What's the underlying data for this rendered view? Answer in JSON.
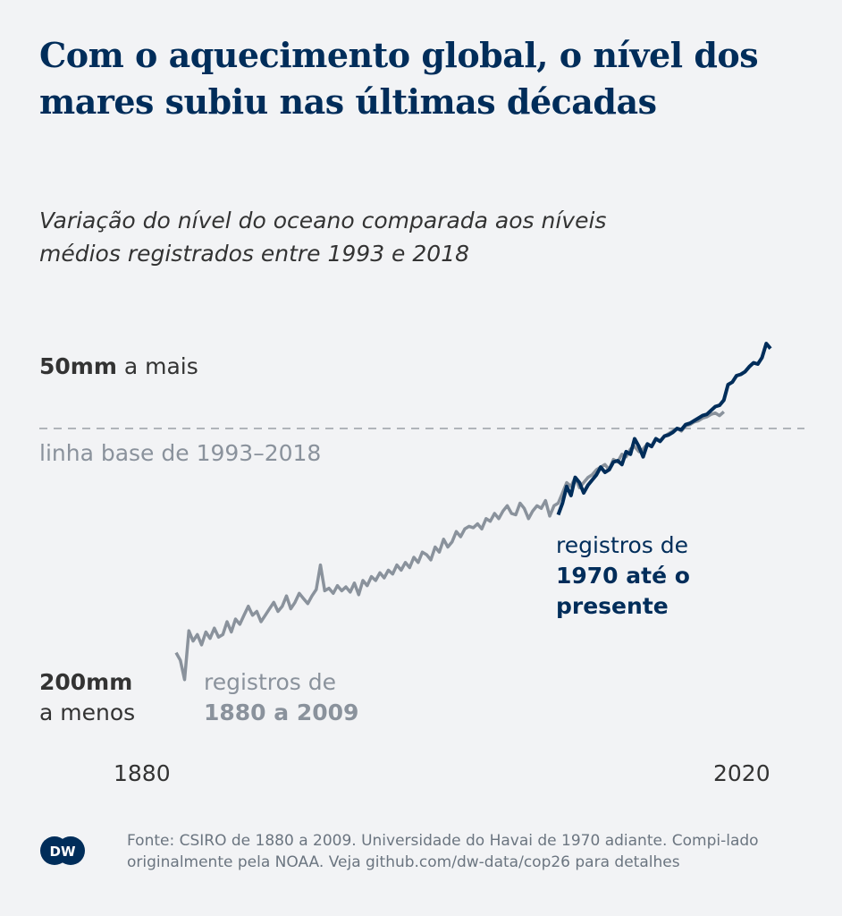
{
  "title": "Com o aquecimento global, o nível dos mares subiu nas últimas décadas",
  "subtitle": "Variação do nível do oceano comparada aos níveis médios registrados entre 1993 e 2018",
  "labels": {
    "top_bold": "50mm",
    "top_rest": " a mais",
    "bottom_bold": "200mm",
    "bottom_rest": "a menos",
    "baseline": "linha base de 1993–2018",
    "grey_1": "registros de",
    "grey_2": "1880 a 2009",
    "navy_1": "registros de",
    "navy_2": "1970 até o",
    "navy_3": "presente"
  },
  "source": "Fonte: CSIRO de 1880 a 2009. Universidade do Havai de 1970 adiante. Compi-lado originalmente pela NOAA. Veja github.com/dw-data/cop26 para detalhes",
  "logo_text": "DW",
  "chart_data": {
    "type": "line",
    "xlabel": "",
    "ylabel": "",
    "x_ticks": [
      "1880",
      "2020"
    ],
    "xlim": [
      1880,
      2020
    ],
    "y_ticks": [
      {
        "value": 50,
        "label": "50mm a mais"
      },
      {
        "value": -200,
        "label": "200mm a menos"
      }
    ],
    "baseline": {
      "value": 0,
      "label": "linha base de 1993–2018",
      "style": "dashed"
    },
    "grid": false,
    "series": [
      {
        "name": "registros de 1880 a 2009",
        "color": "#8a929c",
        "start_year": 1880,
        "values": [
          -174,
          -180,
          -195,
          -157,
          -165,
          -160,
          -168,
          -158,
          -163,
          -155,
          -162,
          -160,
          -150,
          -158,
          -148,
          -152,
          -145,
          -138,
          -145,
          -142,
          -150,
          -145,
          -140,
          -135,
          -142,
          -138,
          -130,
          -140,
          -135,
          -128,
          -132,
          -136,
          -130,
          -125,
          -106,
          -126,
          -124,
          -128,
          -122,
          -126,
          -123,
          -127,
          -120,
          -129,
          -118,
          -122,
          -115,
          -118,
          -112,
          -116,
          -110,
          -113,
          -106,
          -110,
          -104,
          -108,
          -100,
          -104,
          -96,
          -98,
          -102,
          -92,
          -96,
          -86,
          -92,
          -88,
          -80,
          -84,
          -78,
          -76,
          -77,
          -74,
          -78,
          -70,
          -72,
          -66,
          -70,
          -64,
          -60,
          -66,
          -67,
          -58,
          -62,
          -70,
          -64,
          -60,
          -62,
          -56,
          -68,
          -60,
          -58,
          -50,
          -42,
          -45,
          -38,
          -46,
          -42,
          -38,
          -36,
          -32,
          -30,
          -28,
          -32,
          -24,
          -26,
          -20,
          -22,
          -16,
          -14,
          -18,
          -16,
          -12,
          -14,
          -8,
          -10,
          -6,
          -4,
          -2,
          0,
          -2,
          2,
          3,
          5,
          6,
          8,
          9,
          11,
          12,
          10,
          13
        ]
      },
      {
        "name": "registros de 1970 até o presente",
        "color": "#002d5a",
        "start_year": 1970,
        "values": [
          -67,
          -58,
          -45,
          -52,
          -38,
          -42,
          -50,
          -44,
          -40,
          -36,
          -30,
          -34,
          -32,
          -26,
          -25,
          -28,
          -18,
          -20,
          -8,
          -14,
          -22,
          -12,
          -14,
          -8,
          -10,
          -6,
          -5,
          -3,
          0,
          -1,
          3,
          4,
          6,
          8,
          10,
          11,
          14,
          17,
          18,
          22,
          34,
          36,
          41,
          42,
          44,
          48,
          51,
          50,
          55,
          66,
          62
        ]
      }
    ]
  }
}
